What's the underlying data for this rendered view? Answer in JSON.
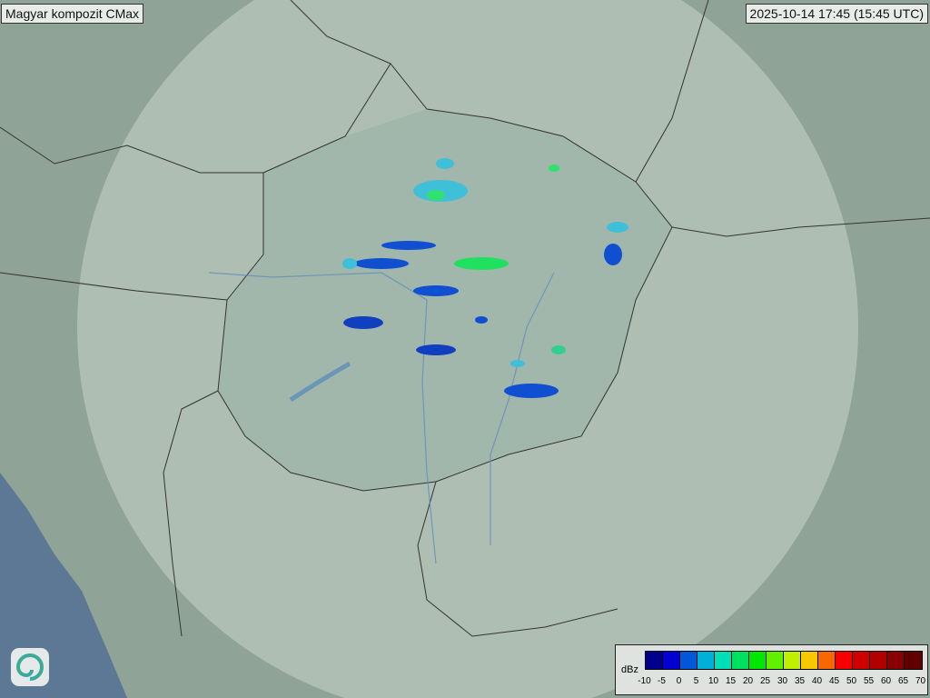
{
  "title": "Magyar kompozit  CMax",
  "timestamp": "2025-10-14 17:45 (15:45 UTC)",
  "legend": {
    "unit": "dBz",
    "ticks": [
      "-10",
      "-5",
      "0",
      "5",
      "10",
      "15",
      "20",
      "25",
      "30",
      "35",
      "40",
      "45",
      "50",
      "55",
      "60",
      "65",
      "70"
    ],
    "colors": [
      "#00008c",
      "#0000d0",
      "#0058d8",
      "#00b0d8",
      "#00e0b8",
      "#00e060",
      "#00e800",
      "#60f000",
      "#c0f000",
      "#f8c800",
      "#f86800",
      "#f80000",
      "#d00000",
      "#b00000",
      "#880000",
      "#600000"
    ]
  },
  "logo_icon": "swirl-logo-icon",
  "colors": {
    "land": "#8fa396",
    "coverage": "#b7c7bd",
    "sea": "#5d7894",
    "border": "#333333"
  }
}
